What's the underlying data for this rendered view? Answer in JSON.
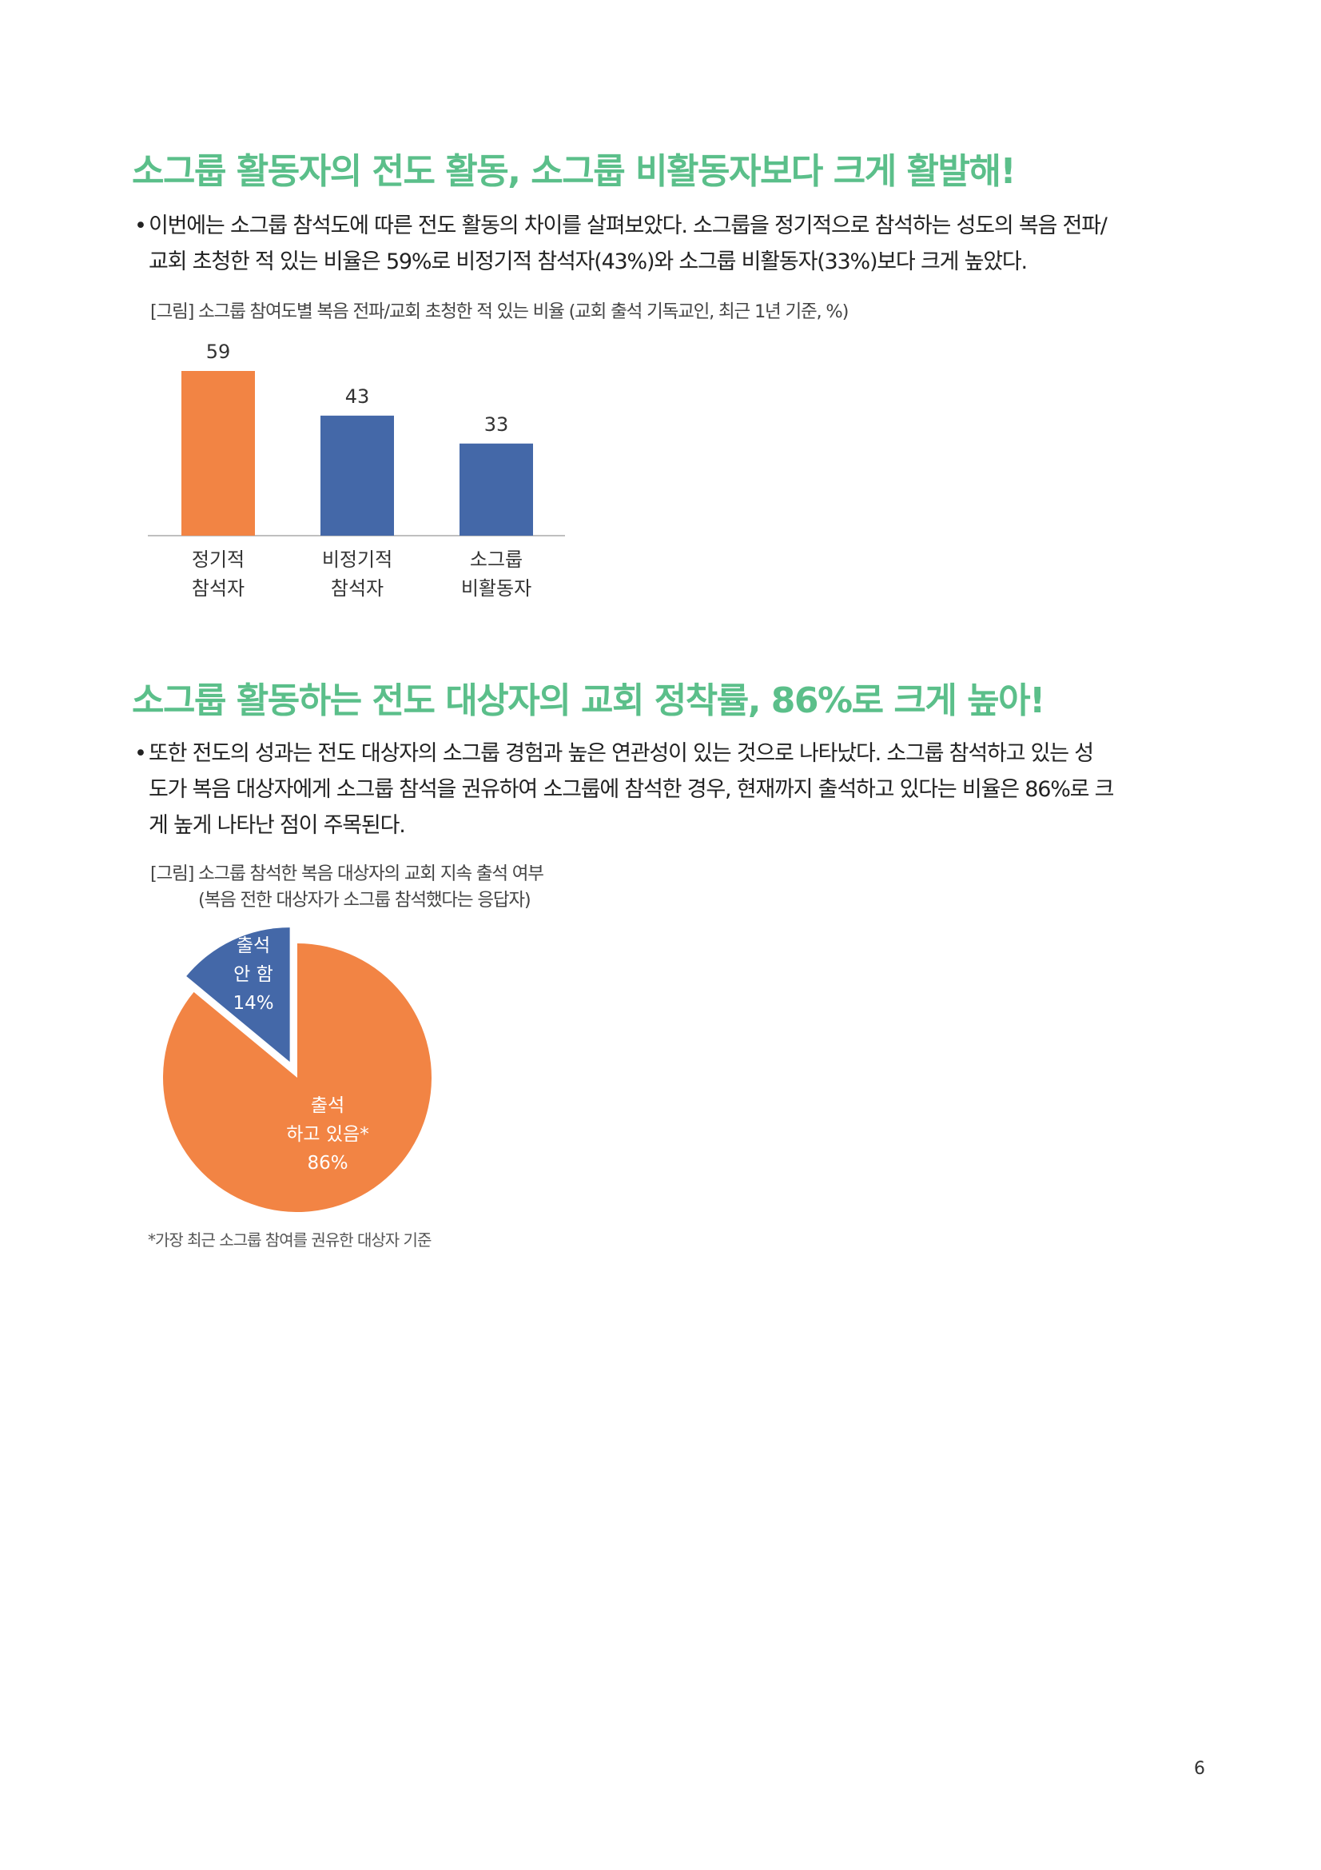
{
  "section1": {
    "heading": "소그룹 활동자의 전도 활동, 소그룹 비활동자보다 크게 활발해!",
    "bullet_marker": "•",
    "paragraph_lines": [
      "이번에는 소그룹 참석도에 따른 전도 활동의 차이를 살펴보았다. 소그룹을 정기적으로 참석하는 성도의 복음 전파/",
      "교회 초청한 적 있는 비율은 59%로 비정기적 참석자(43%)와 소그룹 비활동자(33%)보다 크게 높았다."
    ],
    "figure_caption": "[그림] 소그룹 참여도별 복음 전파/교회 초청한 적 있는 비율 (교회 출석 기독교인, 최근 1년 기준, %)"
  },
  "section2": {
    "heading": "소그룹 활동하는 전도 대상자의 교회 정착률, 86%로 크게 높아!",
    "bullet_marker": "•",
    "paragraph_lines": [
      "또한 전도의 성과는 전도 대상자의 소그룹 경험과 높은 연관성이 있는 것으로 나타났다. 소그룹 참석하고 있는 성",
      "도가 복음 대상자에게 소그룹 참석을 권유하여 소그룹에 참석한 경우, 현재까지 출석하고 있다는 비율은 86%로 크",
      "게 높게 나타난 점이 주목된다."
    ],
    "figure_caption_lines": [
      "[그림] 소그룹 참석한 복음 대상자의 교회 지속 출석 여부",
      "(복음 전한 대상자가 소그룹 참석했다는 응답자)"
    ],
    "footnote": "*가장 최근 소그룹 참여를 권유한 대상자 기준"
  },
  "chart_data": [
    {
      "type": "bar",
      "categories": [
        [
          "정기적",
          "참석자"
        ],
        [
          "비정기적",
          "참석자"
        ],
        [
          "소그룹",
          "비활동자"
        ]
      ],
      "values": [
        59,
        43,
        33
      ],
      "value_labels": [
        "59",
        "43",
        "33"
      ],
      "colors": [
        "#f28444",
        "#4468a8",
        "#4468a8"
      ],
      "ylim": [
        0,
        65
      ]
    },
    {
      "type": "pie",
      "slices": [
        {
          "label_lines": [
            "출석",
            "하고 있음*",
            "86%"
          ],
          "value": 86,
          "color": "#f28444"
        },
        {
          "label_lines": [
            "출석",
            "안 함",
            "14%"
          ],
          "value": 14,
          "color": "#4468a8",
          "exploded": true
        }
      ]
    }
  ],
  "page_number": "6"
}
